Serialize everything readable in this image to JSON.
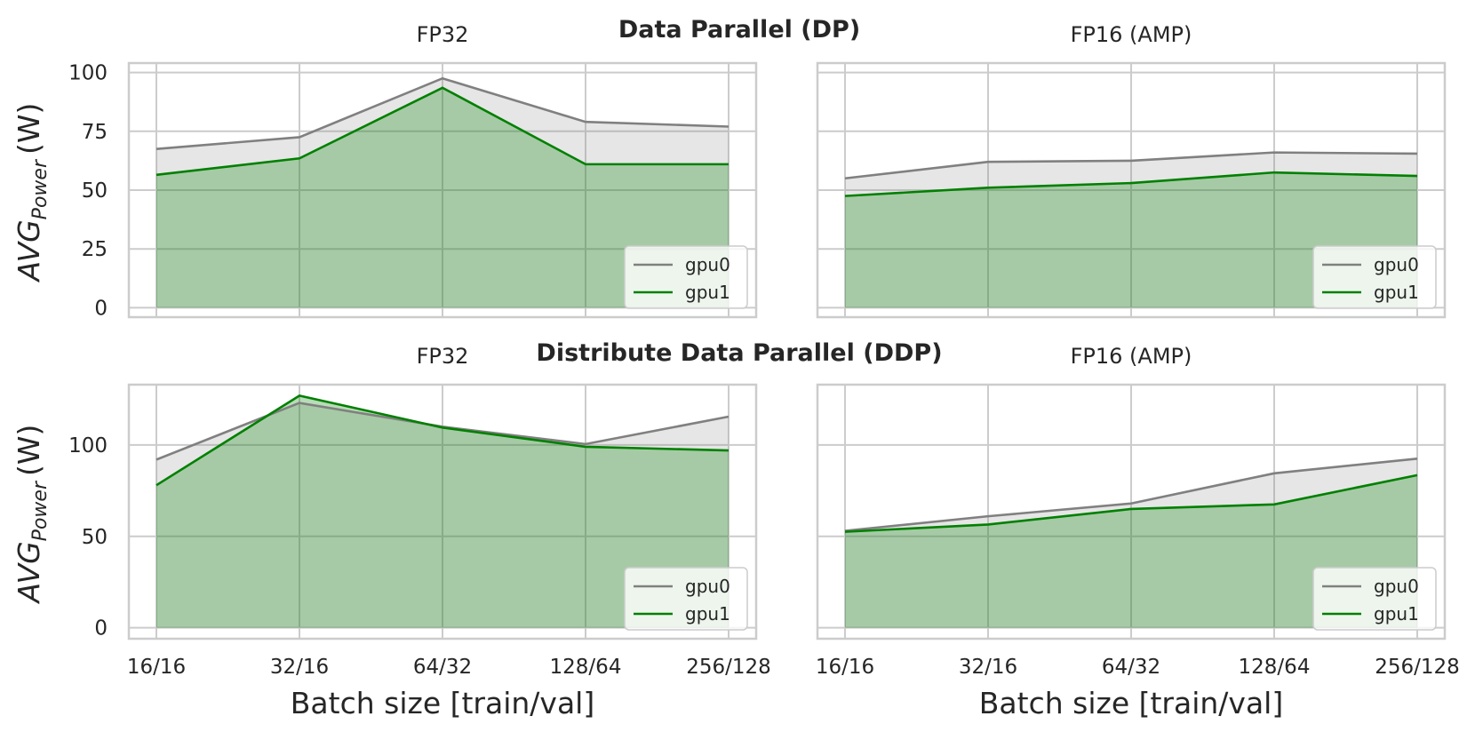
{
  "colors": {
    "gpu0": "#808080",
    "gpu1": "#008000",
    "grid": "#cccccc",
    "spine": "#cccccc",
    "background": "#ffffff"
  },
  "chart_data": [
    {
      "type": "area",
      "row_title": "Data Parallel (DP)",
      "title": "FP32",
      "xlabel": "",
      "ylabel": "AVG_Power (W)",
      "ylabel_main": "AVG",
      "ylabel_sub": "Power",
      "ylabel_unit": "(W)",
      "categories": [
        "16/16",
        "32/16",
        "64/32",
        "128/64",
        "256/128"
      ],
      "ylim": [
        -4,
        104
      ],
      "yticks": [
        0,
        25,
        50,
        75,
        100
      ],
      "series": [
        {
          "name": "gpu0",
          "values": [
            67.5,
            72.5,
            97.5,
            79,
            77
          ]
        },
        {
          "name": "gpu1",
          "values": [
            56.5,
            63.5,
            93.5,
            61,
            61
          ]
        }
      ],
      "legend_loc": "lower right"
    },
    {
      "type": "area",
      "title": "FP16 (AMP)",
      "xlabel": "",
      "ylabel": "",
      "categories": [
        "16/16",
        "32/16",
        "64/32",
        "128/64",
        "256/128"
      ],
      "ylim": [
        -4,
        104
      ],
      "yticks": [
        0,
        25,
        50,
        75,
        100
      ],
      "series": [
        {
          "name": "gpu0",
          "values": [
            55,
            62,
            62.5,
            66,
            65.5
          ]
        },
        {
          "name": "gpu1",
          "values": [
            47.5,
            51,
            53,
            57.5,
            56
          ]
        }
      ],
      "legend_loc": "lower right"
    },
    {
      "type": "area",
      "row_title": "Distribute Data Parallel (DDP)",
      "title": "FP32",
      "xlabel": "Batch size [train/val]",
      "ylabel": "AVG_Power (W)",
      "ylabel_main": "AVG",
      "ylabel_sub": "Power",
      "ylabel_unit": "(W)",
      "categories": [
        "16/16",
        "32/16",
        "64/32",
        "128/64",
        "256/128"
      ],
      "ylim": [
        -6,
        133
      ],
      "yticks": [
        0,
        50,
        100
      ],
      "series": [
        {
          "name": "gpu0",
          "values": [
            92,
            123,
            110,
            100.5,
            115.5
          ]
        },
        {
          "name": "gpu1",
          "values": [
            78,
            127,
            109.5,
            99,
            97
          ]
        }
      ],
      "legend_loc": "lower right"
    },
    {
      "type": "area",
      "title": "FP16 (AMP)",
      "xlabel": "Batch size [train/val]",
      "ylabel": "",
      "categories": [
        "16/16",
        "32/16",
        "64/32",
        "128/64",
        "256/128"
      ],
      "ylim": [
        -6,
        133
      ],
      "yticks": [
        0,
        50,
        100
      ],
      "series": [
        {
          "name": "gpu0",
          "values": [
            53,
            61,
            68,
            84.5,
            92.5
          ]
        },
        {
          "name": "gpu1",
          "values": [
            52.5,
            56.5,
            65,
            67.5,
            83.5
          ]
        }
      ],
      "legend_loc": "lower right"
    }
  ]
}
